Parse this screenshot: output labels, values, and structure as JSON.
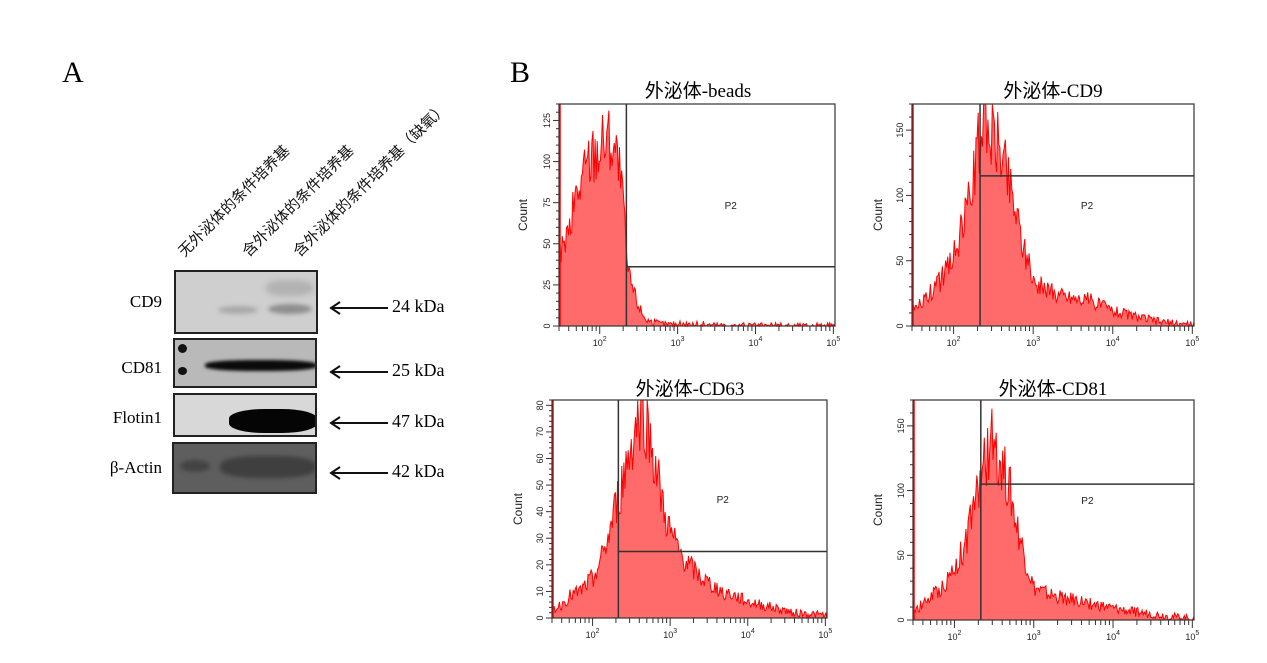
{
  "panelA": {
    "letter": "A",
    "lanes": [
      "无外泌体的条件培养基",
      "含外泌体的条件培养基",
      "含外泌体的条件培养基（缺氧）"
    ],
    "blots": [
      {
        "protein": "CD9",
        "size": "24 kDa"
      },
      {
        "protein": "CD81",
        "size": "25 kDa"
      },
      {
        "protein": "Flotin1",
        "size": "47 kDa"
      },
      {
        "protein": "β-Actin",
        "size": "42 kDa"
      }
    ]
  },
  "panelB": {
    "letter": "B"
  },
  "colors": {
    "histogram_fill": "#ff6b6b",
    "histogram_line": "#ff0000",
    "axis": "#333333",
    "gate": "#333333"
  },
  "chart_data": [
    {
      "type": "area",
      "title": "外泌体-beads",
      "xlabel": "",
      "ylabel": "Count",
      "xscale": "log",
      "xlim": [
        30,
        105000
      ],
      "ylim": [
        0,
        135
      ],
      "yticks": [
        0,
        25,
        50,
        75,
        100,
        125
      ],
      "xticks": [
        "10^2",
        "10^3",
        "10^4",
        "10^5"
      ],
      "gate": {
        "name": "P2",
        "x_start": 220,
        "y_level": 36
      },
      "x": [
        30,
        40,
        50,
        60,
        70,
        80,
        100,
        120,
        150,
        180,
        210,
        230,
        260,
        300,
        350,
        400,
        500,
        700,
        1000,
        2000,
        5000,
        10000,
        50000,
        100000
      ],
      "values": [
        45,
        55,
        80,
        90,
        100,
        105,
        110,
        115,
        112,
        95,
        60,
        32,
        25,
        15,
        8,
        4,
        2,
        1,
        1,
        1,
        0,
        0,
        0,
        0
      ]
    },
    {
      "type": "area",
      "title": "外泌体-CD9",
      "xlabel": "",
      "ylabel": "Count",
      "xscale": "log",
      "xlim": [
        30,
        105000
      ],
      "ylim": [
        0,
        170
      ],
      "yticks": [
        0,
        50,
        100,
        150
      ],
      "xticks": [
        "10^2",
        "10^3",
        "10^4",
        "10^5"
      ],
      "gate": {
        "name": "P2",
        "x_start": 215,
        "y_level": 115
      },
      "x": [
        30,
        40,
        50,
        70,
        100,
        130,
        160,
        200,
        230,
        260,
        300,
        350,
        400,
        500,
        600,
        800,
        1000,
        1500,
        2000,
        3000,
        5000,
        8000,
        10000,
        20000,
        40000,
        100000
      ],
      "values": [
        12,
        18,
        25,
        35,
        55,
        75,
        100,
        135,
        150,
        155,
        150,
        145,
        135,
        110,
        90,
        55,
        35,
        28,
        25,
        22,
        20,
        15,
        12,
        7,
        3,
        1
      ]
    },
    {
      "type": "area",
      "title": "外泌体-CD63",
      "xlabel": "",
      "ylabel": "Count",
      "xscale": "log",
      "xlim": [
        30,
        105000
      ],
      "ylim": [
        0,
        82
      ],
      "yticks": [
        0,
        10,
        20,
        30,
        40,
        50,
        60,
        70,
        80
      ],
      "xticks": [
        "10^2",
        "10^3",
        "10^4",
        "10^5"
      ],
      "gate": {
        "name": "P2",
        "x_start": 215,
        "y_level": 25
      },
      "x": [
        30,
        40,
        50,
        70,
        100,
        130,
        160,
        200,
        230,
        260,
        300,
        350,
        400,
        450,
        500,
        600,
        700,
        800,
        1000,
        1300,
        1700,
        2500,
        4000,
        7000,
        10000,
        20000,
        40000,
        100000
      ],
      "values": [
        3,
        5,
        8,
        10,
        15,
        22,
        30,
        42,
        48,
        55,
        62,
        70,
        76,
        78,
        72,
        62,
        52,
        42,
        32,
        25,
        20,
        15,
        11,
        8,
        6,
        4,
        2,
        1
      ]
    },
    {
      "type": "area",
      "title": "外泌体-CD81",
      "xlabel": "",
      "ylabel": "Count",
      "xscale": "log",
      "xlim": [
        30,
        105000
      ],
      "ylim": [
        0,
        170
      ],
      "yticks": [
        0,
        50,
        100,
        150
      ],
      "xticks": [
        "10^2",
        "10^3",
        "10^4",
        "10^5"
      ],
      "gate": {
        "name": "P2",
        "x_start": 215,
        "y_level": 105
      },
      "x": [
        30,
        40,
        50,
        70,
        100,
        130,
        160,
        200,
        230,
        260,
        300,
        350,
        400,
        500,
        600,
        800,
        1000,
        1500,
        2000,
        3000,
        5000,
        10000,
        20000,
        50000,
        100000
      ],
      "values": [
        8,
        12,
        18,
        25,
        40,
        55,
        75,
        100,
        115,
        125,
        140,
        130,
        120,
        100,
        75,
        45,
        25,
        20,
        18,
        16,
        13,
        9,
        6,
        3,
        1
      ]
    }
  ]
}
